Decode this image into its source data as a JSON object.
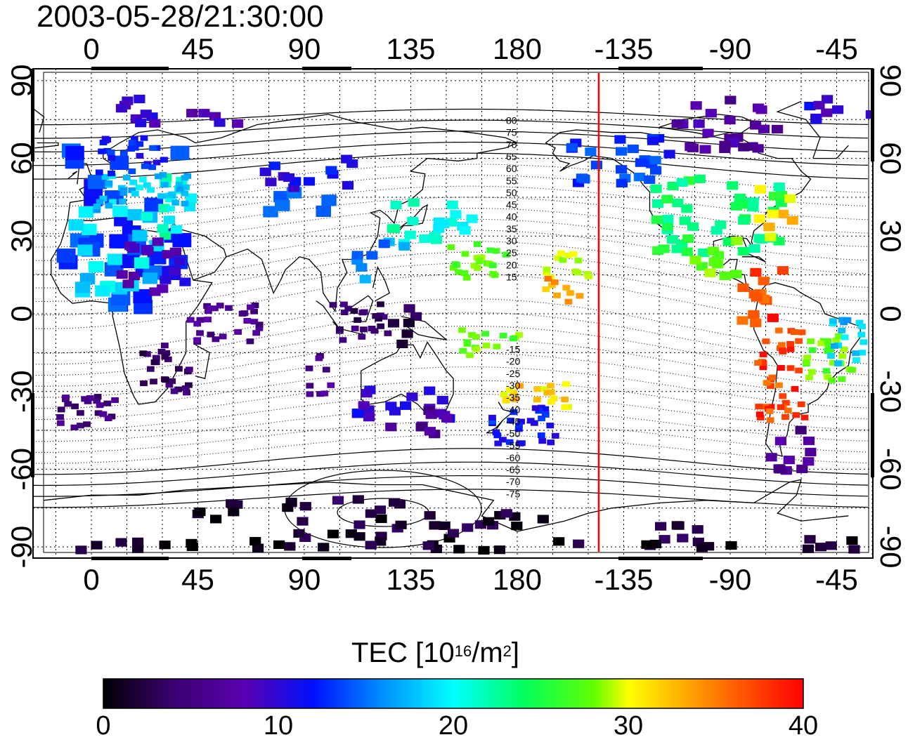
{
  "title": "2003-05-28/21:30:00",
  "map": {
    "top_lon_labels": [
      "0",
      "45",
      "90",
      "135",
      "180",
      "-135",
      "-90",
      "-45"
    ],
    "bottom_lon_labels": [
      "0",
      "45",
      "90",
      "135",
      "180",
      "-135",
      "-90",
      "-45"
    ],
    "left_lat_labels": [
      "90",
      "60",
      "30",
      "0",
      "-30",
      "-60",
      "-90"
    ],
    "right_lat_labels": [
      "90",
      "60",
      "30",
      "0",
      "-30",
      "-60",
      "-90"
    ],
    "contour_labels": [
      "80",
      "75",
      "70",
      "65",
      "60",
      "55",
      "50",
      "45",
      "40",
      "35",
      "30",
      "25",
      "20",
      "15",
      "-15",
      "-20",
      "-25",
      "-30",
      "-35",
      "-40",
      "-45",
      "-50",
      "-55",
      "-60",
      "-65",
      "-70",
      "-75"
    ],
    "terminator_lon": -145,
    "terminator_color": "#ff0000"
  },
  "colorbar": {
    "title_main": "TEC  [10",
    "title_exp1": "16",
    "title_mid": "/m",
    "title_exp2": "2",
    "title_end": "]",
    "ticks": [
      "0",
      "10",
      "20",
      "30",
      "40"
    ],
    "range": [
      0,
      40
    ],
    "colors": [
      "#000000",
      "#3a0070",
      "#5a00b0",
      "#0010ff",
      "#0090ff",
      "#00ffff",
      "#00ff60",
      "#60ff00",
      "#ffff00",
      "#ff8000",
      "#ff0000"
    ]
  }
}
